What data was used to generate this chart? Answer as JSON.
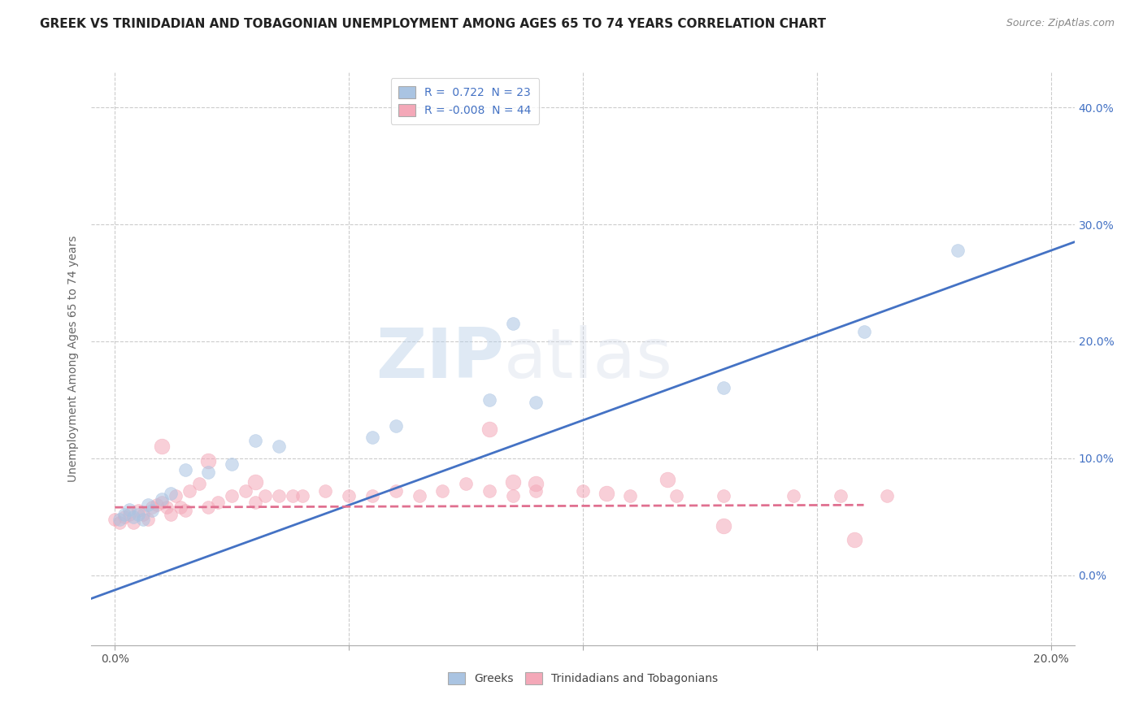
{
  "title": "GREEK VS TRINIDADIAN AND TOBAGONIAN UNEMPLOYMENT AMONG AGES 65 TO 74 YEARS CORRELATION CHART",
  "source": "Source: ZipAtlas.com",
  "ylabel": "Unemployment Among Ages 65 to 74 years",
  "xlim": [
    -0.005,
    0.205
  ],
  "ylim": [
    -0.06,
    0.43
  ],
  "xticks": [
    0.0,
    0.05,
    0.1,
    0.15,
    0.2
  ],
  "xtick_labels_outer": [
    "0.0%",
    "",
    "",
    "",
    "20.0%"
  ],
  "yticks": [
    0.0,
    0.1,
    0.2,
    0.3,
    0.4
  ],
  "ytick_labels": [
    "0.0%",
    "10.0%",
    "20.0%",
    "30.0%",
    "40.0%"
  ],
  "greek_R": 0.722,
  "greek_N": 23,
  "tnt_R": -0.008,
  "tnt_N": 44,
  "greek_color": "#aac4e2",
  "tnt_color": "#f4a8b8",
  "greek_line_color": "#4472C4",
  "tnt_line_color": "#e07090",
  "background_color": "#ffffff",
  "grid_color": "#cccccc",
  "watermark_zip": "ZIP",
  "watermark_atlas": "atlas",
  "legend_label_greek": "Greeks",
  "legend_label_tnt": "Trinidadians and Tobagonians",
  "greek_x": [
    0.001,
    0.002,
    0.003,
    0.004,
    0.005,
    0.006,
    0.007,
    0.008,
    0.01,
    0.012,
    0.015,
    0.02,
    0.025,
    0.03,
    0.035,
    0.055,
    0.06,
    0.08,
    0.085,
    0.09,
    0.13,
    0.16,
    0.18
  ],
  "greek_y": [
    0.048,
    0.052,
    0.056,
    0.05,
    0.052,
    0.048,
    0.06,
    0.055,
    0.065,
    0.07,
    0.09,
    0.088,
    0.095,
    0.115,
    0.11,
    0.118,
    0.128,
    0.15,
    0.215,
    0.148,
    0.16,
    0.208,
    0.278
  ],
  "tnt_x": [
    0.0,
    0.001,
    0.002,
    0.003,
    0.004,
    0.005,
    0.006,
    0.007,
    0.008,
    0.009,
    0.01,
    0.011,
    0.012,
    0.013,
    0.014,
    0.015,
    0.016,
    0.018,
    0.02,
    0.022,
    0.025,
    0.028,
    0.03,
    0.032,
    0.035,
    0.038,
    0.04,
    0.045,
    0.05,
    0.055,
    0.06,
    0.065,
    0.07,
    0.075,
    0.08,
    0.085,
    0.09,
    0.1,
    0.11,
    0.12,
    0.13,
    0.145,
    0.155,
    0.165
  ],
  "tnt_y": [
    0.048,
    0.045,
    0.05,
    0.052,
    0.045,
    0.055,
    0.052,
    0.048,
    0.058,
    0.06,
    0.062,
    0.058,
    0.052,
    0.068,
    0.058,
    0.055,
    0.072,
    0.078,
    0.058,
    0.062,
    0.068,
    0.072,
    0.062,
    0.068,
    0.068,
    0.068,
    0.068,
    0.072,
    0.068,
    0.068,
    0.072,
    0.068,
    0.072,
    0.078,
    0.072,
    0.068,
    0.072,
    0.072,
    0.068,
    0.068,
    0.068,
    0.068,
    0.068,
    0.068
  ],
  "tnt_pink_extra_x": [
    0.01,
    0.02,
    0.03,
    0.08,
    0.085,
    0.09,
    0.105,
    0.118,
    0.13,
    0.158
  ],
  "tnt_pink_extra_y": [
    0.11,
    0.098,
    0.08,
    0.125,
    0.08,
    0.078,
    0.07,
    0.082,
    0.042,
    0.03
  ],
  "title_fontsize": 11,
  "axis_label_fontsize": 10,
  "tick_fontsize": 10,
  "legend_fontsize": 10,
  "marker_size": 130,
  "marker_alpha": 0.55,
  "line_width": 2.0
}
